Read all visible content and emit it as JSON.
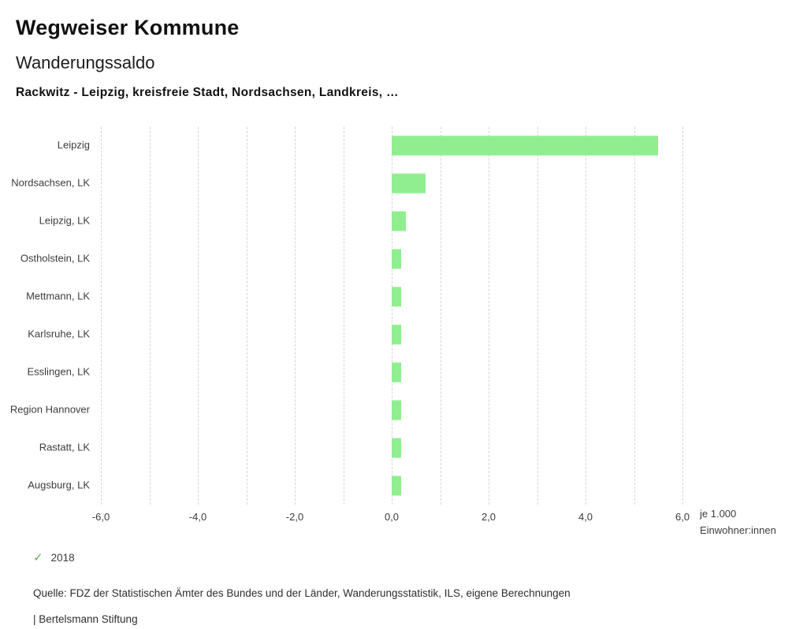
{
  "header": {
    "title": "Wegweiser Kommune",
    "subtitle": "Wanderungssaldo",
    "filter_line": "Rackwitz - Leipzig, kreisfreie Stadt, Nordsachsen, Landkreis, …"
  },
  "chart_data": {
    "type": "bar",
    "orientation": "horizontal",
    "title": "Wanderungssaldo",
    "categories": [
      "Leipzig",
      "Nordsachsen, LK",
      "Leipzig, LK",
      "Ostholstein, LK",
      "Mettmann, LK",
      "Karlsruhe, LK",
      "Esslingen, LK",
      "Region Hannover",
      "Rastatt, LK",
      "Augsburg, LK"
    ],
    "series": [
      {
        "name": "2018",
        "values": [
          5.5,
          0.7,
          0.3,
          0.2,
          0.2,
          0.2,
          0.2,
          0.2,
          0.2,
          0.2
        ]
      }
    ],
    "xlim": [
      -6,
      6
    ],
    "x_tick_values": [
      -6,
      -4,
      -2,
      0,
      2,
      4,
      6
    ],
    "x_tick_labels": [
      "-6,0",
      "-4,0",
      "-2,0",
      "0,0",
      "2,0",
      "4,0",
      "6,0"
    ],
    "gridline_step": 1,
    "grid": "dashed-vertical",
    "bar_color": "#90ee90",
    "xlabel_line1": "je 1.000",
    "xlabel_line2": "Einwohner:innen",
    "legend_position": "bottom-left"
  },
  "legend": {
    "check_icon": "✓",
    "check_color": "#56b24f",
    "year": "2018"
  },
  "footer": {
    "source": "Quelle: FDZ der Statistischen Ämter des Bundes und der Länder, Wanderungsstatistik, ILS, eigene Berechnungen",
    "branding": "| Bertelsmann Stiftung"
  }
}
